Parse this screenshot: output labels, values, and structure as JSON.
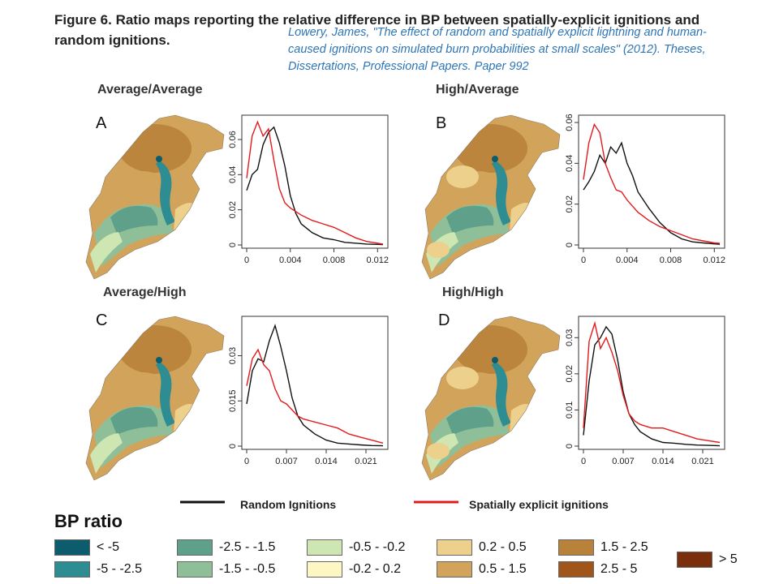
{
  "figure": {
    "title_line1": "Figure 6. Ratio maps reporting the relative difference in BP between spatially-explicit ignitions and",
    "title_line2": "random ignitions.",
    "citation": "Lowery, James, \"The effect of random and spatially explicit lightning and human-caused ignitions on simulated burn probabilities at small scales\" (2012). Theses, Dissertations, Professional Papers. Paper 992"
  },
  "panels": [
    {
      "letter": "A",
      "title": "Average/Average"
    },
    {
      "letter": "B",
      "title": "High/Average"
    },
    {
      "letter": "C",
      "title": "Average/High"
    },
    {
      "letter": "D",
      "title": "High/High"
    }
  ],
  "line_legend": {
    "random": "Random Ignitions",
    "spatial": "Spatially explicit ignitions"
  },
  "colors": {
    "random": "#111111",
    "spatial": "#e31a1c"
  },
  "bp_legend": {
    "title": "BP ratio",
    "items": [
      {
        "label": "< -5",
        "color": "#0d5c6e"
      },
      {
        "label": "-5 - -2.5",
        "color": "#2e8c93"
      },
      {
        "label": "-2.5 - -1.5",
        "color": "#5fa08a"
      },
      {
        "label": "-1.5 - -0.5",
        "color": "#8fbf98"
      },
      {
        "label": "-0.5 - -0.2",
        "color": "#cde6b2"
      },
      {
        "label": "-0.2 - 0.2",
        "color": "#fdf7c3"
      },
      {
        "label": "0.2 - 0.5",
        "color": "#ecd08c"
      },
      {
        "label": "0.5 - 1.5",
        "color": "#d2a45b"
      },
      {
        "label": "1.5 - 2.5",
        "color": "#b9823a"
      },
      {
        "label": "2.5 - 5",
        "color": "#a0561a"
      },
      {
        "label": "> 5",
        "color": "#7b2e0c"
      }
    ]
  },
  "chart_data": [
    {
      "type": "line",
      "panel": "A",
      "xlim": [
        0,
        0.0125
      ],
      "ylim": [
        0,
        0.072
      ],
      "xticks": [
        "0",
        "0.004",
        "0.008",
        "0.012"
      ],
      "xtick_values": [
        0,
        0.004,
        0.008,
        0.012
      ],
      "yticks": [
        "0",
        "0.02",
        "0.04",
        "0.06"
      ],
      "ytick_values": [
        0,
        0.02,
        0.04,
        0.06
      ],
      "series": [
        {
          "name": "Random Ignitions",
          "x": [
            0,
            0.0005,
            0.001,
            0.0015,
            0.002,
            0.0025,
            0.003,
            0.0035,
            0.004,
            0.0045,
            0.005,
            0.006,
            0.007,
            0.008,
            0.009,
            0.01,
            0.011,
            0.012,
            0.0125
          ],
          "y": [
            0.031,
            0.04,
            0.043,
            0.057,
            0.064,
            0.067,
            0.058,
            0.045,
            0.028,
            0.018,
            0.012,
            0.007,
            0.004,
            0.003,
            0.0015,
            0.001,
            0.0005,
            0.0003,
            0.0002
          ]
        },
        {
          "name": "Spatially explicit ignitions",
          "x": [
            0,
            0.0005,
            0.001,
            0.0015,
            0.002,
            0.0025,
            0.003,
            0.0035,
            0.004,
            0.0045,
            0.005,
            0.006,
            0.007,
            0.008,
            0.009,
            0.01,
            0.011,
            0.012,
            0.0125
          ],
          "y": [
            0.038,
            0.062,
            0.07,
            0.062,
            0.066,
            0.048,
            0.032,
            0.024,
            0.021,
            0.019,
            0.017,
            0.014,
            0.012,
            0.01,
            0.007,
            0.004,
            0.002,
            0.001,
            0.0005
          ]
        }
      ]
    },
    {
      "type": "line",
      "panel": "B",
      "xlim": [
        0,
        0.0125
      ],
      "ylim": [
        0,
        0.062
      ],
      "xticks": [
        "0",
        "0.004",
        "0.008",
        "0.012"
      ],
      "xtick_values": [
        0,
        0.004,
        0.008,
        0.012
      ],
      "yticks": [
        "0",
        "0.02",
        "0.04",
        "0.06"
      ],
      "ytick_values": [
        0,
        0.02,
        0.04,
        0.06
      ],
      "series": [
        {
          "name": "Random Ignitions",
          "x": [
            0,
            0.0005,
            0.001,
            0.0015,
            0.002,
            0.0025,
            0.003,
            0.0035,
            0.004,
            0.0045,
            0.005,
            0.006,
            0.007,
            0.008,
            0.009,
            0.01,
            0.011,
            0.012,
            0.0125
          ],
          "y": [
            0.027,
            0.031,
            0.036,
            0.044,
            0.04,
            0.048,
            0.045,
            0.05,
            0.04,
            0.034,
            0.026,
            0.018,
            0.011,
            0.006,
            0.003,
            0.0015,
            0.001,
            0.0005,
            0.0003
          ]
        },
        {
          "name": "Spatially explicit ignitions",
          "x": [
            0,
            0.0005,
            0.001,
            0.0015,
            0.002,
            0.0025,
            0.003,
            0.0035,
            0.004,
            0.0045,
            0.005,
            0.006,
            0.007,
            0.008,
            0.009,
            0.01,
            0.011,
            0.012,
            0.0125
          ],
          "y": [
            0.032,
            0.05,
            0.059,
            0.055,
            0.04,
            0.033,
            0.027,
            0.026,
            0.022,
            0.019,
            0.016,
            0.012,
            0.009,
            0.007,
            0.005,
            0.003,
            0.002,
            0.001,
            0.0008
          ]
        }
      ]
    },
    {
      "type": "line",
      "panel": "C",
      "xlim": [
        0,
        0.024
      ],
      "ylim": [
        0,
        0.042
      ],
      "xticks": [
        "0",
        "0.007",
        "0.014",
        "0.021"
      ],
      "xtick_values": [
        0,
        0.007,
        0.014,
        0.021
      ],
      "yticks": [
        "0",
        "0.015",
        "0.03"
      ],
      "ytick_values": [
        0,
        0.015,
        0.03
      ],
      "series": [
        {
          "name": "Random Ignitions",
          "x": [
            0,
            0.001,
            0.002,
            0.003,
            0.004,
            0.005,
            0.006,
            0.007,
            0.008,
            0.009,
            0.01,
            0.012,
            0.014,
            0.016,
            0.018,
            0.02,
            0.022,
            0.024
          ],
          "y": [
            0.014,
            0.025,
            0.029,
            0.028,
            0.035,
            0.04,
            0.033,
            0.025,
            0.016,
            0.01,
            0.007,
            0.004,
            0.002,
            0.001,
            0.0007,
            0.0004,
            0.0002,
            0.0001
          ]
        },
        {
          "name": "Spatially explicit ignitions",
          "x": [
            0,
            0.001,
            0.002,
            0.003,
            0.004,
            0.005,
            0.006,
            0.007,
            0.008,
            0.009,
            0.01,
            0.012,
            0.014,
            0.016,
            0.018,
            0.02,
            0.022,
            0.024
          ],
          "y": [
            0.02,
            0.029,
            0.032,
            0.027,
            0.025,
            0.019,
            0.015,
            0.014,
            0.012,
            0.01,
            0.009,
            0.008,
            0.007,
            0.006,
            0.004,
            0.003,
            0.002,
            0.001
          ]
        }
      ]
    },
    {
      "type": "line",
      "panel": "D",
      "xlim": [
        0,
        0.024
      ],
      "ylim": [
        0,
        0.035
      ],
      "xticks": [
        "0",
        "0.007",
        "0.014",
        "0.021"
      ],
      "xtick_values": [
        0,
        0.007,
        0.014,
        0.021
      ],
      "yticks": [
        "0",
        "0.01",
        "0.02",
        "0.03"
      ],
      "ytick_values": [
        0,
        0.01,
        0.02,
        0.03
      ],
      "series": [
        {
          "name": "Random Ignitions",
          "x": [
            0,
            0.001,
            0.002,
            0.003,
            0.004,
            0.005,
            0.006,
            0.007,
            0.008,
            0.009,
            0.01,
            0.012,
            0.014,
            0.016,
            0.018,
            0.02,
            0.022,
            0.024
          ],
          "y": [
            0.003,
            0.018,
            0.028,
            0.03,
            0.033,
            0.031,
            0.024,
            0.015,
            0.009,
            0.006,
            0.004,
            0.002,
            0.001,
            0.0008,
            0.0005,
            0.0003,
            0.0002,
            0.0001
          ]
        },
        {
          "name": "Spatially explicit ignitions",
          "x": [
            0,
            0.001,
            0.002,
            0.003,
            0.004,
            0.005,
            0.006,
            0.007,
            0.008,
            0.009,
            0.01,
            0.012,
            0.014,
            0.016,
            0.018,
            0.02,
            0.022,
            0.024
          ],
          "y": [
            0.005,
            0.029,
            0.034,
            0.027,
            0.03,
            0.026,
            0.021,
            0.014,
            0.009,
            0.007,
            0.006,
            0.005,
            0.005,
            0.004,
            0.003,
            0.002,
            0.0015,
            0.001
          ]
        }
      ]
    }
  ]
}
